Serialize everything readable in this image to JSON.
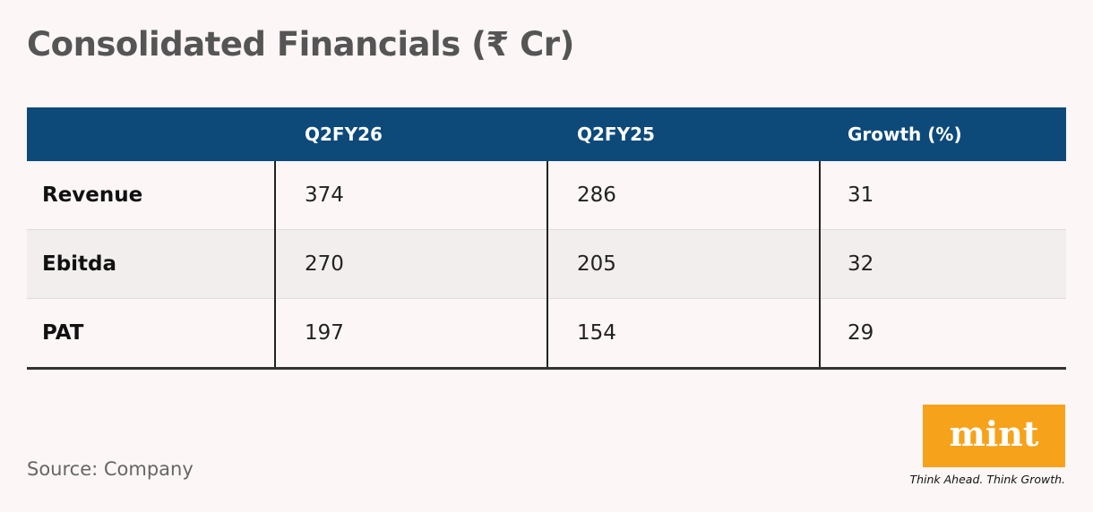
{
  "header": {
    "title": "Consolidated Financials (₹ Cr)"
  },
  "table": {
    "columns": [
      "Q2FY26",
      "Q2FY25",
      "Growth (%)"
    ],
    "rows": [
      [
        "Revenue",
        374,
        286,
        31
      ],
      [
        "Ebitda",
        270,
        205,
        32
      ],
      [
        "PAT",
        197,
        154,
        29
      ]
    ]
  },
  "footer": {
    "source": "Source: Company",
    "logo": "mint",
    "tagline": "Think Ahead. Think Growth."
  }
}
